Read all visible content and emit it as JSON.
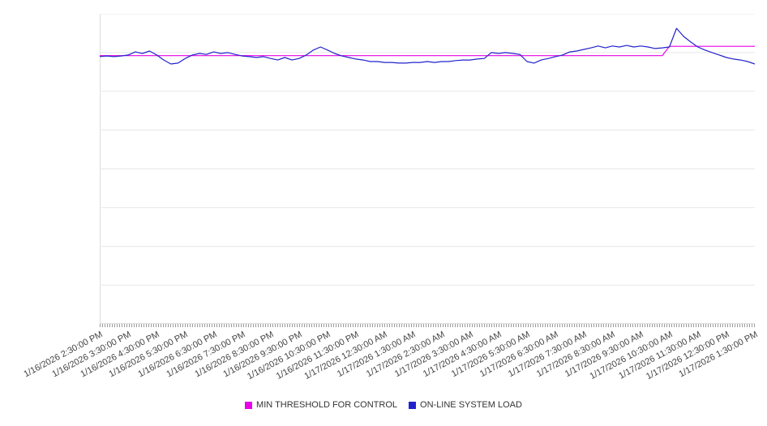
{
  "chart_data": {
    "type": "line",
    "title": "",
    "xlabel": "",
    "ylabel": "",
    "grid": true,
    "grid_divisions": 8,
    "legend_position": "bottom-center",
    "ylim": [
      0,
      100
    ],
    "points_per_hour": 4,
    "x_labels": [
      "1/16/2026 2:30:00 PM",
      "1/16/2026 3:30:00 PM",
      "1/16/2026 4:30:00 PM",
      "1/16/2026 5:30:00 PM",
      "1/16/2026 6:30:00 PM",
      "1/16/2026 7:30:00 PM",
      "1/16/2026 8:30:00 PM",
      "1/16/2026 9:30:00 PM",
      "1/16/2026 10:30:00 PM",
      "1/16/2026 11:30:00 PM",
      "1/17/2026 12:30:00 AM",
      "1/17/2026 1:30:00 AM",
      "1/17/2026 2:30:00 AM",
      "1/17/2026 3:30:00 AM",
      "1/17/2026 4:30:00 AM",
      "1/17/2026 5:30:00 AM",
      "1/17/2026 6:30:00 AM",
      "1/17/2026 7:30:00 AM",
      "1/17/2026 8:30:00 AM",
      "1/17/2026 9:30:00 AM",
      "1/17/2026 10:30:00 AM",
      "1/17/2026 11:30:00 AM",
      "1/17/2026 12:30:00 PM",
      "1/17/2026 1:30:00 PM"
    ],
    "series": [
      {
        "name": "MIN THRESHOLD FOR CONTROL",
        "color": "#e800e8",
        "values": [
          86.5,
          86.5,
          86.5,
          86.5,
          86.5,
          86.5,
          86.5,
          86.5,
          86.5,
          86.5,
          86.5,
          86.5,
          86.5,
          86.5,
          86.5,
          86.5,
          86.5,
          86.5,
          86.5,
          86.5,
          86.5,
          86.5,
          86.5,
          86.5,
          86.5,
          86.5,
          86.5,
          86.5,
          86.5,
          86.5,
          86.5,
          86.5,
          86.5,
          86.5,
          86.5,
          86.5,
          86.5,
          86.5,
          86.5,
          86.5,
          86.5,
          86.5,
          86.5,
          86.5,
          86.5,
          86.5,
          86.5,
          86.5,
          86.5,
          86.5,
          86.5,
          86.5,
          86.5,
          86.5,
          86.5,
          86.5,
          86.5,
          86.5,
          86.5,
          86.5,
          86.5,
          86.5,
          86.5,
          86.5,
          86.5,
          86.5,
          86.5,
          86.5,
          86.5,
          86.5,
          86.5,
          86.5,
          86.5,
          86.5,
          86.5,
          86.5,
          86.5,
          86.5,
          86.5,
          86.5,
          89.5,
          89.5,
          89.5,
          89.5,
          89.5,
          89.5,
          89.5,
          89.5,
          89.5,
          89.5,
          89.5,
          89.5,
          89.5
        ]
      },
      {
        "name": "ON-LINE SYSTEM LOAD",
        "color": "#2222cc",
        "values": [
          86.2,
          86.4,
          86.2,
          86.4,
          86.7,
          87.7,
          87.2,
          88.0,
          86.7,
          85.1,
          83.8,
          84.1,
          85.6,
          86.7,
          87.2,
          86.9,
          87.7,
          87.2,
          87.5,
          86.9,
          86.4,
          86.2,
          85.9,
          86.2,
          85.6,
          85.1,
          85.9,
          85.1,
          85.6,
          86.7,
          88.3,
          89.3,
          88.3,
          87.2,
          86.4,
          85.9,
          85.4,
          85.1,
          84.6,
          84.6,
          84.3,
          84.3,
          84.1,
          84.1,
          84.3,
          84.3,
          84.6,
          84.3,
          84.6,
          84.6,
          84.9,
          85.1,
          85.1,
          85.4,
          85.6,
          87.5,
          87.2,
          87.5,
          87.2,
          86.9,
          84.6,
          84.1,
          85.1,
          85.6,
          86.2,
          86.7,
          87.7,
          88.0,
          88.5,
          89.0,
          89.6,
          89.0,
          89.6,
          89.3,
          89.8,
          89.3,
          89.6,
          89.3,
          88.8,
          89.0,
          89.3,
          95.3,
          92.7,
          90.9,
          89.3,
          88.3,
          87.5,
          86.7,
          85.9,
          85.4,
          85.1,
          84.6,
          83.8
        ]
      }
    ]
  }
}
